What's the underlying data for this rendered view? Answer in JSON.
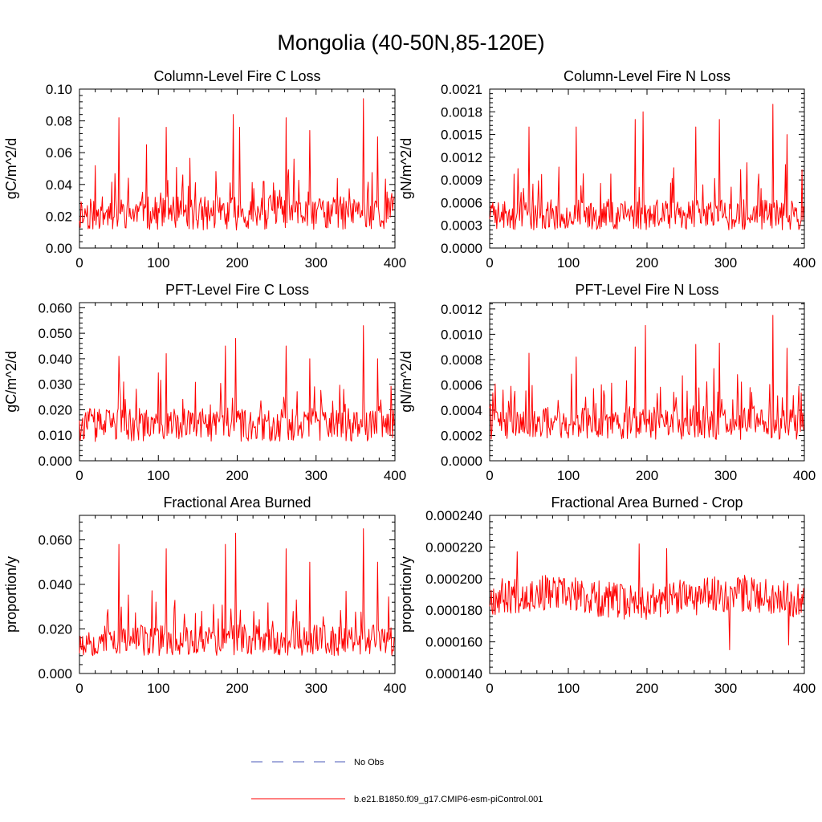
{
  "figure": {
    "title": "Mongolia (40-50N,85-120E)",
    "legend": [
      {
        "label": "No Obs",
        "color": "#4a5ab8",
        "style": "dashed"
      },
      {
        "label": "b.e21.B1850.f09_g17.CMIP6-esm-piControl.001",
        "color": "#ff0000",
        "style": "solid"
      }
    ]
  },
  "chart_data": [
    {
      "type": "line",
      "title": "Column-Level Fire C Loss",
      "ylabel": "gC/m^2/d",
      "xlim": [
        0,
        400
      ],
      "ylim": [
        0,
        0.1
      ],
      "xticks": [
        0,
        100,
        200,
        300,
        400
      ],
      "xtick_labels": [
        "0",
        "100",
        "200",
        "300",
        "400"
      ],
      "yticks": [
        0,
        0.02,
        0.04,
        0.06,
        0.08,
        0.1
      ],
      "ytick_labels": [
        "0.00",
        "0.02",
        "0.04",
        "0.06",
        "0.08",
        "0.10"
      ],
      "gen": {
        "seed": 11,
        "base": 0.025,
        "amp": 0.012,
        "minv": 0.004,
        "peaks": [
          [
            50,
            0.082
          ],
          [
            85,
            0.065
          ],
          [
            110,
            0.076
          ],
          [
            195,
            0.084
          ],
          [
            203,
            0.076
          ],
          [
            262,
            0.082
          ],
          [
            292,
            0.074
          ],
          [
            360,
            0.094
          ],
          [
            378,
            0.07
          ]
        ]
      },
      "series": [
        {
          "name": "b.e21.B1850.f09_g17.CMIP6-esm-piControl.001",
          "color": "#ff0000"
        }
      ]
    },
    {
      "type": "line",
      "title": "Column-Level Fire N Loss",
      "ylabel": "gN/m^2/d",
      "xlim": [
        0,
        400
      ],
      "ylim": [
        0,
        0.0021
      ],
      "xticks": [
        0,
        100,
        200,
        300,
        400
      ],
      "xtick_labels": [
        "0",
        "100",
        "200",
        "300",
        "400"
      ],
      "yticks": [
        0,
        0.0003,
        0.0006,
        0.0009,
        0.0012,
        0.0015,
        0.0018,
        0.0021
      ],
      "ytick_labels": [
        "0.0000",
        "0.0003",
        "0.0006",
        "0.0009",
        "0.0012",
        "0.0015",
        "0.0018",
        "0.0021"
      ],
      "gen": {
        "seed": 23,
        "base": 0.0005,
        "amp": 0.00026,
        "minv": 0.0001,
        "peaks": [
          [
            50,
            0.0016
          ],
          [
            110,
            0.0016
          ],
          [
            185,
            0.0017
          ],
          [
            195,
            0.0018
          ],
          [
            262,
            0.0016
          ],
          [
            292,
            0.0017
          ],
          [
            360,
            0.0019
          ],
          [
            378,
            0.0015
          ]
        ]
      },
      "series": [
        {
          "name": "b.e21.B1850.f09_g17.CMIP6-esm-piControl.001",
          "color": "#ff0000"
        }
      ]
    },
    {
      "type": "line",
      "title": "PFT-Level Fire C Loss",
      "ylabel": "gC/m^2/d",
      "xlim": [
        0,
        400
      ],
      "ylim": [
        0,
        0.062
      ],
      "xticks": [
        0,
        100,
        200,
        300,
        400
      ],
      "xtick_labels": [
        "0",
        "100",
        "200",
        "300",
        "400"
      ],
      "yticks": [
        0,
        0.01,
        0.02,
        0.03,
        0.04,
        0.05,
        0.06
      ],
      "ytick_labels": [
        "0.000",
        "0.010",
        "0.020",
        "0.030",
        "0.040",
        "0.050",
        "0.060"
      ],
      "gen": {
        "seed": 37,
        "base": 0.016,
        "amp": 0.007,
        "minv": 0.003,
        "peaks": [
          [
            50,
            0.041
          ],
          [
            110,
            0.042
          ],
          [
            185,
            0.045
          ],
          [
            198,
            0.048
          ],
          [
            262,
            0.045
          ],
          [
            292,
            0.04
          ],
          [
            360,
            0.053
          ],
          [
            378,
            0.04
          ]
        ]
      },
      "series": [
        {
          "name": "b.e21.B1850.f09_g17.CMIP6-esm-piControl.001",
          "color": "#ff0000"
        }
      ]
    },
    {
      "type": "line",
      "title": "PFT-Level Fire N Loss",
      "ylabel": "gN/m^2/d",
      "xlim": [
        0,
        400
      ],
      "ylim": [
        0,
        0.00125
      ],
      "xticks": [
        0,
        100,
        200,
        300,
        400
      ],
      "xtick_labels": [
        "0",
        "100",
        "200",
        "300",
        "400"
      ],
      "yticks": [
        0,
        0.0002,
        0.0004,
        0.0006,
        0.0008,
        0.001,
        0.0012
      ],
      "ytick_labels": [
        "0.0000",
        "0.0002",
        "0.0004",
        "0.0006",
        "0.0008",
        "0.0010",
        "0.0012"
      ],
      "gen": {
        "seed": 41,
        "base": 0.00033,
        "amp": 0.00015,
        "minv": 8e-05,
        "peaks": [
          [
            50,
            0.00085
          ],
          [
            110,
            0.00082
          ],
          [
            185,
            0.0009
          ],
          [
            198,
            0.00107
          ],
          [
            262,
            0.00092
          ],
          [
            292,
            0.00093
          ],
          [
            360,
            0.00115
          ],
          [
            378,
            0.00089
          ]
        ]
      },
      "series": [
        {
          "name": "b.e21.B1850.f09_g17.CMIP6-esm-piControl.001",
          "color": "#ff0000"
        }
      ]
    },
    {
      "type": "line",
      "title": "Fractional Area Burned",
      "ylabel": "proportion/y",
      "xlim": [
        0,
        400
      ],
      "ylim": [
        0,
        0.071
      ],
      "xticks": [
        0,
        100,
        200,
        300,
        400
      ],
      "xtick_labels": [
        "0",
        "100",
        "200",
        "300",
        "400"
      ],
      "yticks": [
        0,
        0.02,
        0.04,
        0.06
      ],
      "ytick_labels": [
        "0.000",
        "0.020",
        "0.040",
        "0.060"
      ],
      "gen": {
        "seed": 53,
        "base": 0.017,
        "amp": 0.009,
        "minv": 0.003,
        "peaks": [
          [
            50,
            0.058
          ],
          [
            110,
            0.056
          ],
          [
            185,
            0.058
          ],
          [
            198,
            0.063
          ],
          [
            262,
            0.056
          ],
          [
            292,
            0.05
          ],
          [
            360,
            0.065
          ],
          [
            378,
            0.05
          ]
        ]
      },
      "series": [
        {
          "name": "b.e21.B1850.f09_g17.CMIP6-esm-piControl.001",
          "color": "#ff0000"
        }
      ]
    },
    {
      "type": "line",
      "title": "Fractional Area Burned - Crop",
      "ylabel": "proportion/y",
      "xlim": [
        0,
        400
      ],
      "ylim": [
        0.00014,
        0.00024
      ],
      "xticks": [
        0,
        100,
        200,
        300,
        400
      ],
      "xtick_labels": [
        "0",
        "100",
        "200",
        "300",
        "400"
      ],
      "yticks": [
        0.00014,
        0.00016,
        0.00018,
        0.0002,
        0.00022,
        0.00024
      ],
      "ytick_labels": [
        "0.000140",
        "0.000160",
        "0.000180",
        "0.000200",
        "0.000220",
        "0.000240"
      ],
      "gen": {
        "seed": 67,
        "base": 0.000188,
        "amp": 9e-06,
        "minv": 0.000154,
        "centered": true,
        "peaks": [
          [
            35,
            0.000217
          ],
          [
            190,
            0.000222
          ],
          [
            225,
            0.000219
          ],
          [
            305,
            0.000155
          ],
          [
            380,
            0.000158
          ]
        ]
      },
      "series": [
        {
          "name": "b.e21.B1850.f09_g17.CMIP6-esm-piControl.001",
          "color": "#ff0000"
        }
      ]
    }
  ]
}
